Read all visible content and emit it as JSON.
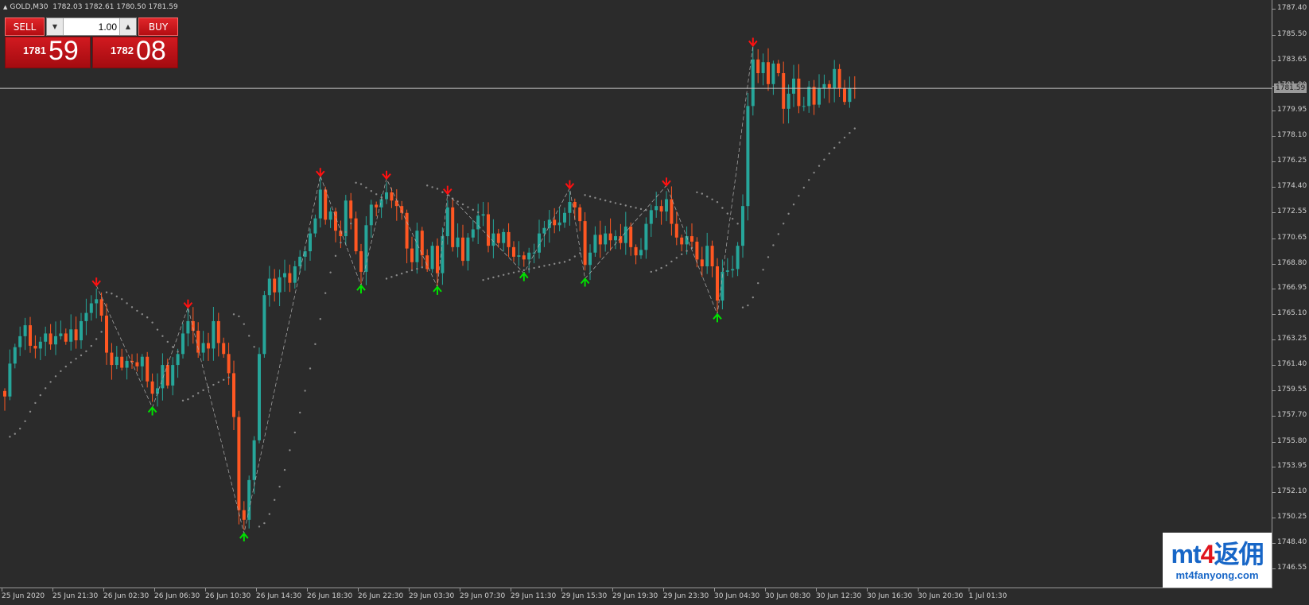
{
  "header": {
    "symbol": "GOLD,M30",
    "ohlc": "1782.03 1782.61 1780.50 1781.59"
  },
  "trade_panel": {
    "sell_label": "SELL",
    "buy_label": "BUY",
    "volume_value": "1.00",
    "bid_main": "1781",
    "bid_big": "59",
    "ask_main": "1782",
    "ask_big": "08",
    "down_icon": "arrow-down-icon",
    "up_icon": "arrow-up-icon"
  },
  "current_price_label": "1781.59",
  "price_axis": [
    "1787.40",
    "1785.50",
    "1783.65",
    "1781.80",
    "1779.95",
    "1778.10",
    "1776.25",
    "1774.40",
    "1772.55",
    "1770.65",
    "1768.80",
    "1766.95",
    "1765.10",
    "1763.25",
    "1761.40",
    "1759.55",
    "1757.70",
    "1755.80",
    "1753.95",
    "1752.10",
    "1750.25",
    "1748.40",
    "1746.55"
  ],
  "time_axis": [
    "25 Jun 2020",
    "25 Jun 21:30",
    "26 Jun 02:30",
    "26 Jun 06:30",
    "26 Jun 10:30",
    "26 Jun 14:30",
    "26 Jun 18:30",
    "26 Jun 22:30",
    "29 Jun 03:30",
    "29 Jun 07:30",
    "29 Jun 11:30",
    "29 Jun 15:30",
    "29 Jun 19:30",
    "29 Jun 23:30",
    "30 Jun 04:30",
    "30 Jun 08:30",
    "30 Jun 12:30",
    "30 Jun 16:30",
    "30 Jun 20:30",
    "1 Jul 01:30"
  ],
  "watermark": {
    "logo_a": "mt",
    "logo_b": "4",
    "logo_c": "返佣",
    "url": "mt4fanyong.com"
  },
  "colors": {
    "background": "#2b2b2b",
    "bull": "#26a69a",
    "bear": "#ff5722",
    "buy_arrow": "#00e000",
    "sell_arrow": "#ff1010",
    "dots": "#8a8a8a",
    "current_line": "#c8c8c8"
  },
  "chart_data": {
    "type": "candlestick",
    "instrument": "GOLD",
    "timeframe": "M30",
    "ylim": [
      1746.55,
      1787.4
    ],
    "closes": [
      1759.1,
      1761.5,
      1762.7,
      1763.5,
      1764.3,
      1762.8,
      1762.6,
      1763.1,
      1763.7,
      1762.9,
      1763.5,
      1763.7,
      1763.1,
      1764.0,
      1763.2,
      1764.6,
      1765.2,
      1765.9,
      1766.2,
      1765.0,
      1762.3,
      1761.4,
      1762.0,
      1761.2,
      1761.7,
      1761.6,
      1761.3,
      1762.0,
      1760.2,
      1759.3,
      1759.7,
      1761.4,
      1759.9,
      1761.4,
      1762.2,
      1763.7,
      1764.6,
      1763.9,
      1762.3,
      1763.0,
      1762.6,
      1764.6,
      1763.0,
      1762.2,
      1760.8,
      1757.6,
      1750.8,
      1750.1,
      1753.0,
      1755.9,
      1762.2,
      1766.5,
      1767.7,
      1766.7,
      1767.8,
      1768.1,
      1767.4,
      1768.6,
      1769.3,
      1769.7,
      1771.0,
      1772.1,
      1774.2,
      1772.0,
      1772.6,
      1771.2,
      1770.8,
      1773.4,
      1772.1,
      1769.7,
      1768.2,
      1771.6,
      1773.1,
      1772.9,
      1773.5,
      1774.0,
      1773.4,
      1773.0,
      1772.5,
      1769.9,
      1768.9,
      1771.2,
      1769.4,
      1768.4,
      1770.1,
      1768.1,
      1770.8,
      1772.9,
      1770.0,
      1770.7,
      1769.0,
      1770.7,
      1771.3,
      1772.3,
      1772.4,
      1770.1,
      1771.0,
      1770.3,
      1771.1,
      1770.0,
      1769.3,
      1769.4,
      1769.1,
      1769.6,
      1769.6,
      1771.0,
      1771.4,
      1772.0,
      1771.6,
      1771.8,
      1772.5,
      1773.3,
      1772.9,
      1771.9,
      1768.7,
      1769.6,
      1770.9,
      1770.2,
      1771.0,
      1770.5,
      1770.8,
      1770.3,
      1771.5,
      1770.0,
      1769.4,
      1769.8,
      1771.7,
      1772.7,
      1773.0,
      1772.6,
      1773.5,
      1771.7,
      1770.7,
      1770.2,
      1770.8,
      1770.4,
      1769.1,
      1768.6,
      1770.1,
      1768.6,
      1766.1,
      1768.2,
      1768.3,
      1768.4,
      1770.1,
      1773.0,
      1780.3,
      1783.7,
      1782.7,
      1783.5,
      1781.9,
      1783.4,
      1782.7,
      1780.1,
      1781.2,
      1782.3,
      1780.3,
      1780.3,
      1781.7,
      1780.4,
      1781.6,
      1781.9,
      1781.6,
      1783.0,
      1781.6,
      1780.6,
      1781.6,
      1781.59
    ]
  }
}
